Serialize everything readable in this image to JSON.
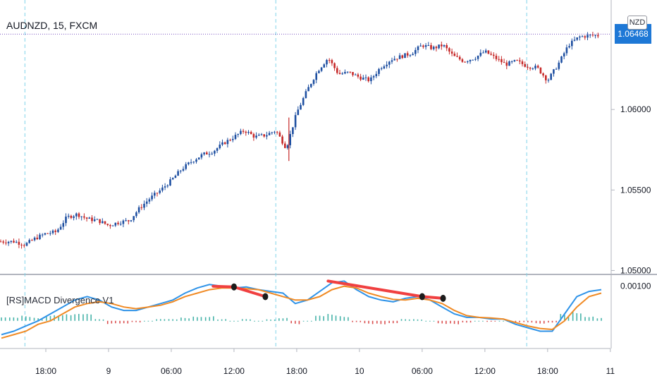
{
  "header": {
    "symbol_title": "AUDNZD, 15, FXCM",
    "currency_badge": "NZD",
    "last_price": "1.06468"
  },
  "indicator": {
    "title": "[RS]MACD Divergence V1"
  },
  "colors": {
    "candle_up": "#1e4fa1",
    "candle_down": "#c62828",
    "macd_line": "#2f93e8",
    "signal_line": "#f08a24",
    "hist_up": "#26a69a",
    "hist_down": "#d32f2f",
    "divergence_line": "#f04040",
    "divergence_dot": "#1c1c1c",
    "session_line": "#7fd3e8",
    "last_price_line": "#7e57c2",
    "price_badge": "#1e78d6"
  },
  "chart_data": [
    {
      "type": "candlestick",
      "title": "AUDNZD, 15, FXCM",
      "x_ticks": [
        "18:00",
        "9",
        "06:00",
        "12:00",
        "18:00",
        "10",
        "06:00",
        "12:00",
        "18:00",
        "11"
      ],
      "y_ticks": [
        "1.05000",
        "1.05500",
        "1.06000"
      ],
      "ylim": [
        1.0498,
        1.0668
      ],
      "last_price": 1.06468,
      "session_breaks": [
        "8 16:00",
        "9 16:00",
        "10 16:00"
      ],
      "close_path": [
        [
          "8 15:00",
          1.0518
        ],
        [
          "8 16:00",
          1.0516
        ],
        [
          "8 17:00",
          1.052
        ],
        [
          "8 18:00",
          1.0523
        ],
        [
          "8 19:00",
          1.0524
        ],
        [
          "8 20:00",
          1.0533
        ],
        [
          "8 21:00",
          1.0535
        ],
        [
          "8 22:00",
          1.0532
        ],
        [
          "8 23:00",
          1.0531
        ],
        [
          "9 00:00",
          1.0528
        ],
        [
          "9 01:00",
          1.053
        ],
        [
          "9 02:00",
          1.0531
        ],
        [
          "9 03:00",
          1.0539
        ],
        [
          "9 04:00",
          1.0545
        ],
        [
          "9 05:00",
          1.055
        ],
        [
          "9 06:00",
          1.0556
        ],
        [
          "9 07:00",
          1.0563
        ],
        [
          "9 08:00",
          1.0568
        ],
        [
          "9 09:00",
          1.0572
        ],
        [
          "9 10:00",
          1.0574
        ],
        [
          "9 11:00",
          1.0579
        ],
        [
          "9 12:00",
          1.0583
        ],
        [
          "9 13:00",
          1.0587
        ],
        [
          "9 14:00",
          1.0583
        ],
        [
          "9 15:00",
          1.0584
        ],
        [
          "9 16:00",
          1.0587
        ],
        [
          "9 17:00",
          1.0576
        ],
        [
          "9 18:00",
          1.0598
        ],
        [
          "9 19:00",
          1.0612
        ],
        [
          "9 20:00",
          1.0624
        ],
        [
          "9 21:00",
          1.0632
        ],
        [
          "9 22:00",
          1.0622
        ],
        [
          "9 23:00",
          1.0623
        ],
        [
          "10 00:00",
          1.062
        ],
        [
          "10 01:00",
          1.0618
        ],
        [
          "10 02:00",
          1.0626
        ],
        [
          "10 03:00",
          1.0631
        ],
        [
          "10 04:00",
          1.0633
        ],
        [
          "10 05:00",
          1.0635
        ],
        [
          "10 06:00",
          1.064
        ],
        [
          "10 07:00",
          1.0638
        ],
        [
          "10 08:00",
          1.064
        ],
        [
          "10 09:00",
          1.0633
        ],
        [
          "10 10:00",
          1.063
        ],
        [
          "10 11:00",
          1.0632
        ],
        [
          "10 12:00",
          1.0636
        ],
        [
          "10 13:00",
          1.0632
        ],
        [
          "10 14:00",
          1.0628
        ],
        [
          "10 15:00",
          1.063
        ],
        [
          "10 16:00",
          1.0627
        ],
        [
          "10 17:00",
          1.0626
        ],
        [
          "10 18:00",
          1.0618
        ],
        [
          "10 19:00",
          1.0628
        ],
        [
          "10 20:00",
          1.064
        ],
        [
          "10 21:00",
          1.0645
        ],
        [
          "10 22:00",
          1.0646
        ]
      ]
    },
    {
      "type": "line",
      "title": "[RS]MACD Divergence V1",
      "y_ticks": [
        "0.00100"
      ],
      "series": [
        {
          "values": [
            -0.0004,
            -0.0003,
            -0.00015,
            0.0,
            0.0002,
            0.0004,
            0.0006,
            0.0007,
            0.0006,
            0.0004,
            0.0003,
            0.0003,
            0.0004,
            0.0005,
            0.0006,
            0.0008,
            0.00095,
            0.00105,
            0.001,
            0.00095,
            0.00098,
            0.0009,
            0.00085,
            0.0008,
            0.0005,
            0.0006,
            0.00085,
            0.0011,
            0.00115,
            0.0009,
            0.0007,
            0.0006,
            0.00055,
            0.00065,
            0.0007,
            0.0006,
            0.0004,
            0.0002,
            0.0001,
            0.0001,
            5e-05,
            5e-05,
            -0.0001,
            -0.0002,
            -0.0003,
            -0.0003,
            0.0002,
            0.0007,
            0.00085,
            0.0009
          ]
        },
        {
          "values": [
            -0.0005,
            -0.0004,
            -0.0003,
            -0.0001,
            0.0,
            0.0002,
            0.0004,
            0.0005,
            0.00055,
            0.0005,
            0.0004,
            0.00035,
            0.0004,
            0.00045,
            0.00055,
            0.0007,
            0.0008,
            0.0009,
            0.00095,
            0.00095,
            0.00093,
            0.0009,
            0.0008,
            0.0007,
            0.0006,
            0.0006,
            0.0007,
            0.0009,
            0.001,
            0.00095,
            0.0008,
            0.0007,
            0.00062,
            0.0006,
            0.00065,
            0.0006,
            0.0005,
            0.0003,
            0.00015,
            0.0001,
            8e-05,
            5e-05,
            -5e-05,
            -0.00015,
            -0.00022,
            -0.00025,
            0.0,
            0.0004,
            0.0007,
            0.0008
          ]
        }
      ],
      "histogram": [
        0.0001,
        0.0001,
        0.00015,
        0.0001,
        0.0002,
        0.0002,
        0.0002,
        0.0002,
        5e-05,
        -0.0001,
        -0.0001,
        -5e-05,
        0.0,
        5e-05,
        5e-05,
        0.0001,
        0.00015,
        0.00015,
        5e-05,
        0.0,
        5e-05,
        0.0,
        5e-05,
        0.0001,
        -0.0001,
        0.0,
        0.00015,
        0.0002,
        0.00015,
        -5e-05,
        -0.0001,
        -0.0001,
        -7e-05,
        5e-05,
        5e-05,
        0.0,
        -0.0001,
        -0.0001,
        -5e-05,
        0.0,
        -3e-05,
        0.0,
        -5e-05,
        -5e-05,
        -8e-05,
        -5e-05,
        0.0002,
        0.0003,
        0.00015,
        0.0001
      ],
      "divergences": [
        {
          "kind": "bearish",
          "points": [
            [
              "9 10:00",
              0.001
            ],
            [
              "9 12:00",
              0.00098
            ],
            [
              "9 15:00",
              0.0007
            ]
          ]
        },
        {
          "kind": "bearish",
          "points": [
            [
              "9 21:00",
              0.00115
            ],
            [
              "10 06:00",
              0.0007
            ],
            [
              "10 08:00",
              0.00065
            ]
          ]
        }
      ]
    }
  ]
}
